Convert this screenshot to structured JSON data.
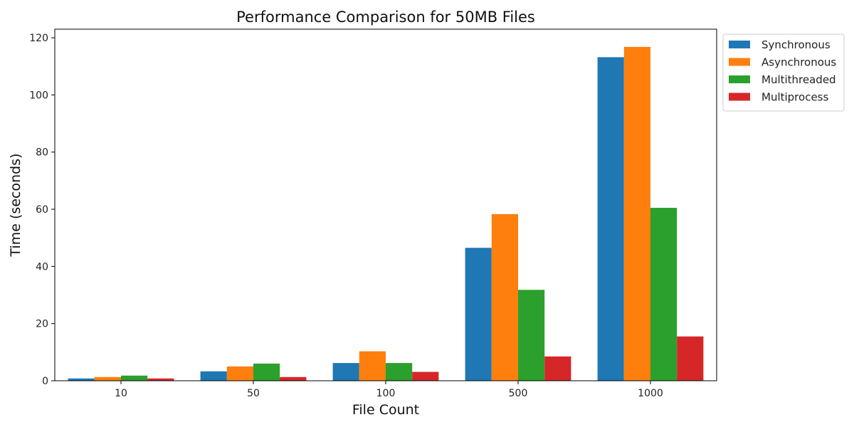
{
  "chart_data": {
    "type": "bar",
    "title": "Performance Comparison for 50MB Files",
    "xlabel": "File Count",
    "ylabel": "Time (seconds)",
    "categories": [
      "10",
      "50",
      "100",
      "500",
      "1000"
    ],
    "ylim": [
      0,
      123
    ],
    "yticks": [
      0,
      20,
      40,
      60,
      80,
      100,
      120
    ],
    "grid": false,
    "legend_position": "outside-right-top",
    "series": [
      {
        "name": "Synchronous",
        "color": "#1f77b4",
        "values": [
          0.8,
          3.3,
          6.2,
          46.5,
          113.2
        ]
      },
      {
        "name": "Asynchronous",
        "color": "#ff7f0e",
        "values": [
          1.3,
          5.0,
          10.3,
          58.3,
          116.8
        ]
      },
      {
        "name": "Multithreaded",
        "color": "#2ca02c",
        "values": [
          1.8,
          6.0,
          6.2,
          31.8,
          60.5
        ]
      },
      {
        "name": "Multiprocess",
        "color": "#d62728",
        "values": [
          0.8,
          1.3,
          3.1,
          8.5,
          15.5
        ]
      }
    ]
  }
}
